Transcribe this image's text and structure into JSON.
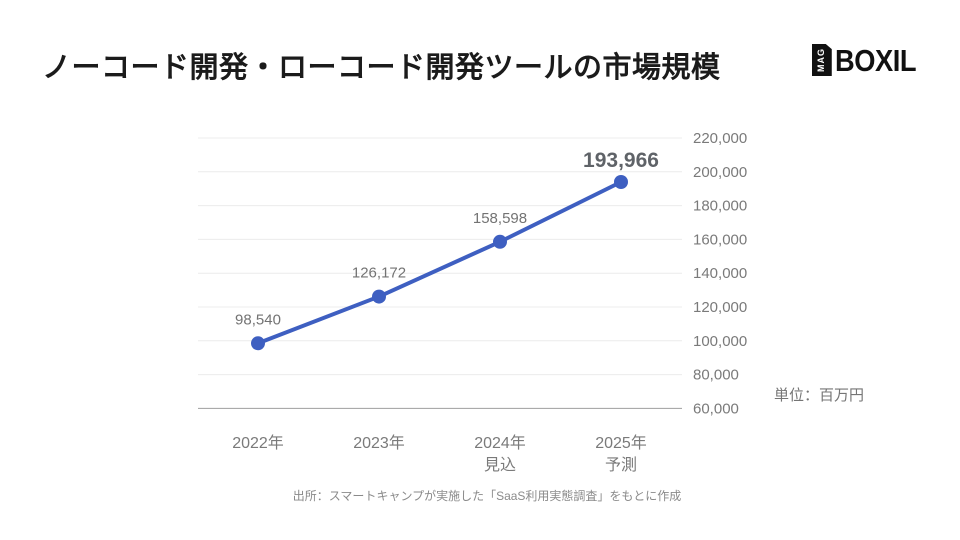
{
  "page": {
    "background": "#ffffff"
  },
  "header": {
    "title": "ノーコード開発・ローコード開発ツールの市場規模",
    "logo": {
      "badge_text": "MAG",
      "word": "BOXIL"
    }
  },
  "chart_data": {
    "type": "line",
    "title": "ノーコード開発・ローコード開発ツールの市場規模",
    "categories": [
      "2022年",
      "2023年",
      "2024年 見込",
      "2025年 予測"
    ],
    "category_lines": [
      [
        "2022年"
      ],
      [
        "2023年"
      ],
      [
        "2024年",
        "見込"
      ],
      [
        "2025年",
        "予測"
      ]
    ],
    "values": [
      98540,
      126172,
      158598,
      193966
    ],
    "data_labels": [
      "98,540",
      "126,172",
      "158,598",
      "193,966"
    ],
    "emphasized_index": 3,
    "ylim": [
      60000,
      220000
    ],
    "y_tick_values": [
      220000,
      200000,
      180000,
      160000,
      140000,
      120000,
      100000,
      80000,
      60000
    ],
    "y_tick_labels": [
      "220,000",
      "200,000",
      "180,000",
      "160,000",
      "140,000",
      "120,000",
      "100,000",
      "80,000",
      "60,000"
    ],
    "unit_label": "単位：百万円",
    "grid": true,
    "legend": "none",
    "line_color": "#3e5fc1",
    "marker_color": "#3e5fc1",
    "grid_color": "#ececec",
    "axis_color": "#9e9e9e"
  },
  "footer": {
    "source": "出所：スマートキャンプが実施した「SaaS利用実態調査」をもとに作成"
  }
}
